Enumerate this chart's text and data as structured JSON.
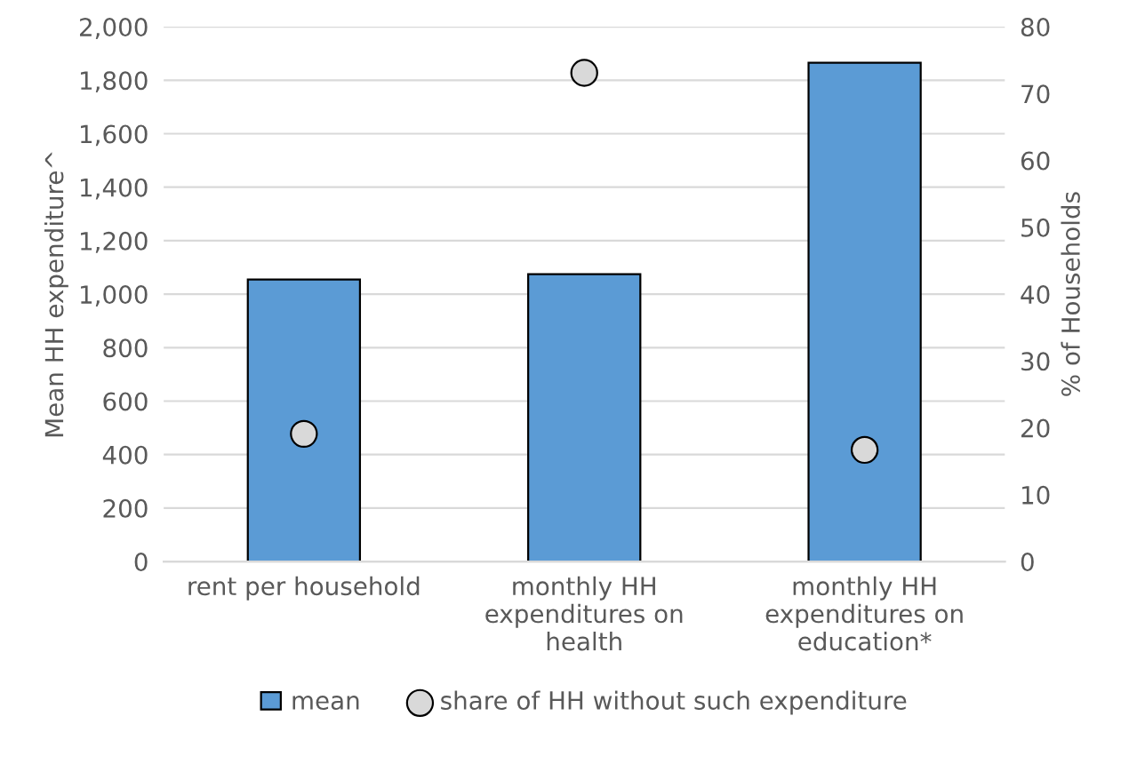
{
  "chart_data": {
    "type": "bar",
    "categories": [
      "rent per household",
      "monthly HH\nexpenditures on\nhealth",
      "monthly HH\nexpenditures on\neducation*"
    ],
    "series": [
      {
        "name": "mean",
        "color": "#5b9bd5",
        "values": [
          1055,
          1075,
          1865
        ]
      },
      {
        "name": "share of HH without such expenditure",
        "type": "scatter",
        "axis": "y2",
        "color": "#d9d9d9",
        "values": [
          19.1,
          73.1,
          16.7
        ]
      }
    ],
    "ylabel": "Mean HH expenditure^",
    "y2label": "% of Households",
    "ylim": [
      0,
      2000
    ],
    "yticks": [
      {
        "value": 0,
        "label": "0"
      },
      {
        "value": 200,
        "label": "200"
      },
      {
        "value": 400,
        "label": "400"
      },
      {
        "value": 600,
        "label": "600"
      },
      {
        "value": 800,
        "label": "800"
      },
      {
        "value": 1000,
        "label": "1,000"
      },
      {
        "value": 1200,
        "label": "1,200"
      },
      {
        "value": 1400,
        "label": "1,400"
      },
      {
        "value": 1600,
        "label": "1,600"
      },
      {
        "value": 1800,
        "label": "1,800"
      },
      {
        "value": 2000,
        "label": "2,000"
      }
    ],
    "y2lim": [
      0,
      80
    ],
    "y2ticks": [
      0,
      10,
      20,
      30,
      40,
      50,
      60,
      70,
      80
    ],
    "grid": "y",
    "legend": "bottom",
    "marker": "circle"
  }
}
